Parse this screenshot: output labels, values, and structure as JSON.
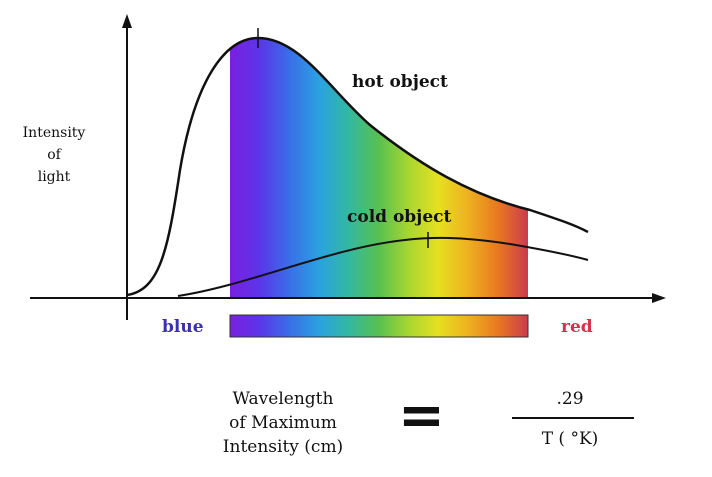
{
  "diagram": {
    "y_axis_label": [
      "Intensity",
      "of",
      "light"
    ],
    "curves": {
      "hot": {
        "label": "hot object",
        "color": "#111111"
      },
      "cold": {
        "label": "cold object",
        "color": "#111111"
      }
    },
    "spectrum": {
      "start_label": "blue",
      "end_label": "red",
      "start_color": "#3a2fb8",
      "end_color": "#d6334a",
      "colors": [
        "#7a1fe0",
        "#5a36e8",
        "#3a6ee8",
        "#2aa2e0",
        "#33b8a0",
        "#58c050",
        "#a8d630",
        "#e6e020",
        "#eeb020",
        "#e87820",
        "#cc3a50"
      ]
    },
    "formula": {
      "left_lines": [
        "Wavelength",
        "of Maximum",
        "Intensity (cm)"
      ],
      "equals": "=",
      "numerator": ".29",
      "denominator": "T ( °K)"
    }
  }
}
